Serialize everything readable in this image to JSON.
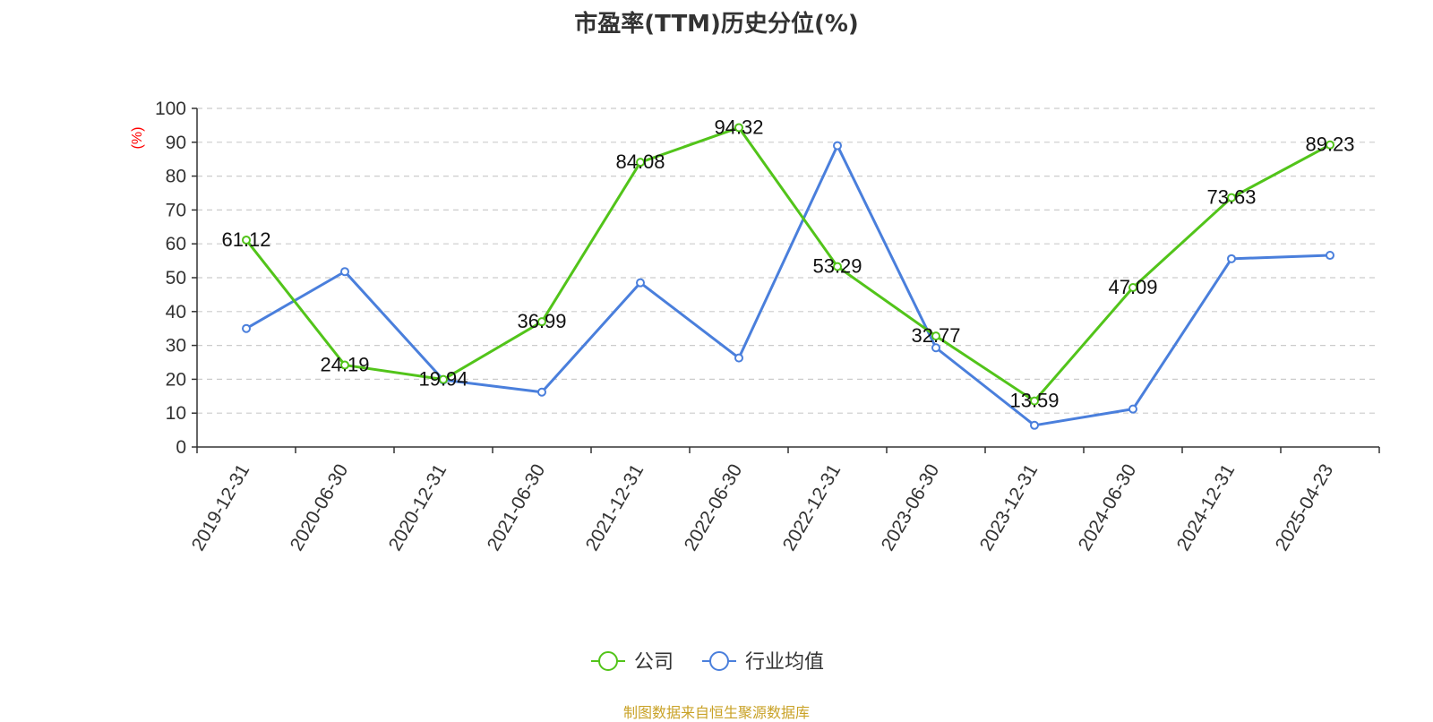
{
  "chart_data": {
    "type": "line",
    "title": "市盈率(TTM)历史分位(%)",
    "ylabel": "(%)",
    "xlabel": "",
    "ylim": [
      0,
      100
    ],
    "yticks": [
      0,
      10,
      20,
      30,
      40,
      50,
      60,
      70,
      80,
      90,
      100
    ],
    "grid": true,
    "legend_position": "bottom",
    "categories": [
      "2019-12-31",
      "2020-06-30",
      "2020-12-31",
      "2021-06-30",
      "2021-12-31",
      "2022-06-30",
      "2022-12-31",
      "2023-06-30",
      "2023-12-31",
      "2024-06-30",
      "2024-12-31",
      "2025-04-23"
    ],
    "series": [
      {
        "name": "公司",
        "color": "#52c41a",
        "values": [
          61.12,
          24.19,
          19.94,
          36.99,
          84.08,
          94.32,
          53.29,
          32.77,
          13.59,
          47.09,
          73.63,
          89.23
        ],
        "show_labels": true
      },
      {
        "name": "行业均值",
        "color": "#4a7fdc",
        "values": [
          35.0,
          51.8,
          19.8,
          16.2,
          48.5,
          26.3,
          89.0,
          29.3,
          6.4,
          11.2,
          55.6,
          56.6
        ],
        "show_labels": false
      }
    ]
  },
  "source_note": "制图数据来自恒生聚源数据库",
  "colors": {
    "axis": "#333333",
    "grid": "#cccccc",
    "ylabel": "#ff0000",
    "source": "#c9a227"
  }
}
